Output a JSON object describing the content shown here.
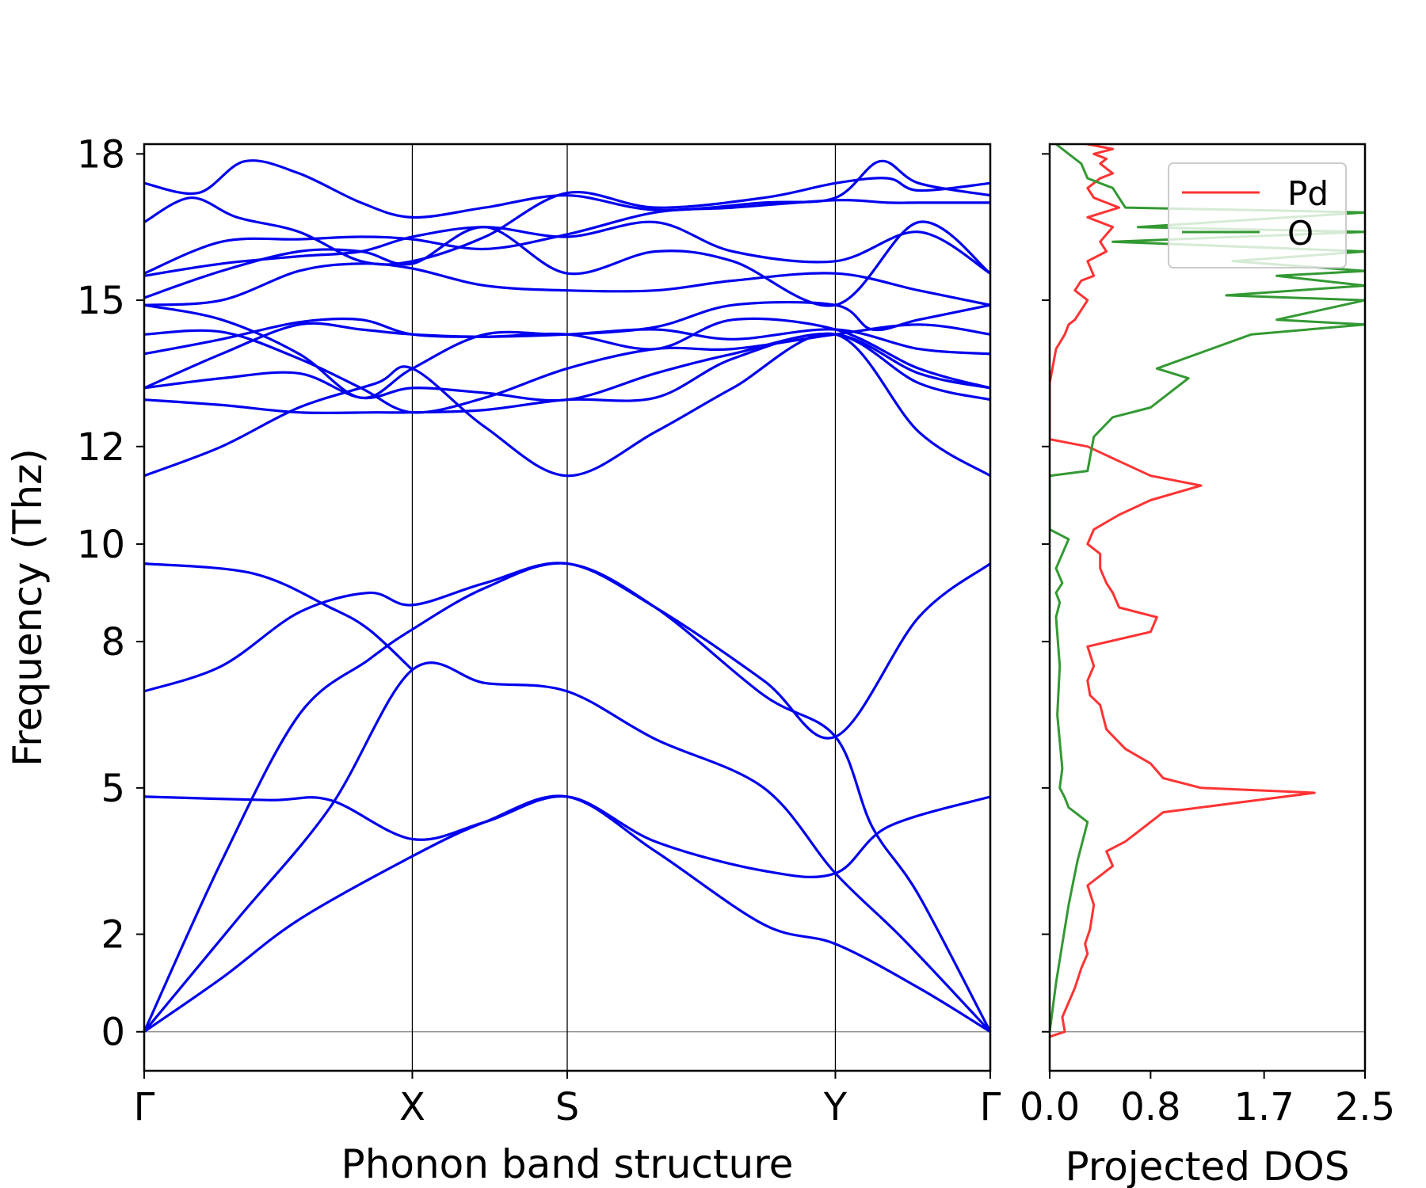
{
  "colors": {
    "bands": "#0000ee",
    "pd": "#ff3333",
    "o": "#339933",
    "axes": "#000000",
    "zero_line": "#808080"
  },
  "chart_data": [
    {
      "type": "line",
      "panel": "phonon-band-structure",
      "xlabel": "Phonon band structure",
      "ylabel": "Frequency (Thz)",
      "ylim": [
        -0.8,
        18.2
      ],
      "yticks": [
        0,
        2,
        5,
        8,
        10,
        12,
        15,
        18
      ],
      "ytick_labels": [
        "0",
        "2",
        "5",
        "8",
        "10",
        "12",
        "15",
        "18"
      ],
      "kpoints": [
        "Γ",
        "X",
        "S",
        "Y",
        "Γ"
      ],
      "kpoint_positions": [
        0,
        1.731,
        2.731,
        4.462,
        5.462
      ],
      "grid": false,
      "series": [
        {
          "x": [
            0,
            0.5,
            1.0,
            1.731,
            2.2,
            2.731,
            3.3,
            4.0,
            4.462,
            5.0,
            5.462
          ],
          "values": [
            0.0,
            1.1,
            2.3,
            3.6,
            4.3,
            4.82,
            3.7,
            2.2,
            1.8,
            0.9,
            0.0
          ]
        },
        {
          "x": [
            0,
            0.6,
            1.2,
            1.731,
            2.2,
            2.731,
            3.3,
            4.0,
            4.462,
            4.9,
            5.462
          ],
          "values": [
            0.0,
            2.3,
            4.6,
            7.42,
            7.15,
            6.98,
            6.0,
            5.0,
            3.25,
            1.9,
            0.0
          ]
        },
        {
          "x": [
            0,
            0.5,
            1.0,
            1.45,
            1.731,
            2.2,
            2.731,
            3.3,
            4.0,
            4.462,
            4.7,
            5.0,
            5.462
          ],
          "values": [
            0.0,
            3.5,
            6.5,
            7.63,
            8.25,
            9.1,
            9.6,
            8.7,
            6.9,
            6.05,
            4.2,
            2.8,
            0.0
          ]
        },
        {
          "x": [
            0,
            0.8,
            1.2,
            1.731,
            2.2,
            2.731,
            3.3,
            4.0,
            4.462,
            4.8,
            5.462
          ],
          "values": [
            4.82,
            4.75,
            4.75,
            3.95,
            4.3,
            4.82,
            3.9,
            3.3,
            3.25,
            4.2,
            4.82
          ]
        },
        {
          "x": [
            0,
            0.5,
            1.0,
            1.45,
            1.731,
            2.2,
            2.731,
            3.3,
            4.0,
            4.462,
            5.0,
            5.462
          ],
          "values": [
            6.98,
            7.5,
            8.6,
            9.0,
            8.75,
            9.2,
            9.6,
            8.7,
            7.2,
            6.05,
            8.5,
            9.6
          ]
        },
        {
          "x": [
            0,
            0.7,
            1.2,
            1.45,
            1.731
          ],
          "values": [
            9.6,
            9.4,
            8.7,
            8.25,
            7.42
          ]
        },
        {
          "x": [
            0,
            0.5,
            1.0,
            1.5,
            1.731,
            2.2,
            2.731,
            3.3,
            3.8,
            4.462,
            5.0,
            5.462
          ],
          "values": [
            11.4,
            12.0,
            12.8,
            13.3,
            13.6,
            12.4,
            11.4,
            12.3,
            13.2,
            14.3,
            12.3,
            11.4
          ]
        },
        {
          "x": [
            0,
            0.5,
            1.0,
            1.5,
            1.731,
            2.2,
            2.731,
            3.3,
            3.8,
            4.462,
            5.0,
            5.462
          ],
          "values": [
            12.96,
            12.85,
            12.7,
            12.7,
            12.7,
            12.75,
            12.96,
            13.0,
            13.8,
            14.3,
            13.3,
            12.96
          ]
        },
        {
          "x": [
            0,
            0.5,
            1.0,
            1.4,
            1.731,
            2.2,
            2.731,
            3.3,
            3.8,
            4.462,
            5.0,
            5.462
          ],
          "values": [
            13.2,
            13.4,
            13.5,
            13.0,
            13.2,
            13.1,
            12.96,
            13.5,
            13.9,
            14.3,
            13.5,
            13.2
          ]
        },
        {
          "x": [
            0,
            0.5,
            1.0,
            1.4,
            1.731,
            2.2,
            2.731,
            3.3,
            3.8,
            4.462,
            5.0,
            5.462
          ],
          "values": [
            13.2,
            13.9,
            14.5,
            14.4,
            14.3,
            14.25,
            14.3,
            14.0,
            14.6,
            14.4,
            13.6,
            13.2
          ]
        },
        {
          "x": [
            0,
            0.5,
            1.0,
            1.4,
            1.731,
            2.2,
            2.731,
            3.3,
            3.8,
            4.462,
            5.0,
            5.462
          ],
          "values": [
            13.9,
            14.2,
            14.55,
            14.6,
            14.3,
            14.25,
            14.3,
            14.4,
            14.2,
            14.4,
            14.0,
            13.9
          ]
        },
        {
          "x": [
            0,
            0.5,
            1.0,
            1.4,
            1.731,
            2.2,
            2.731,
            3.3,
            3.8,
            4.462,
            5.0,
            5.462
          ],
          "values": [
            14.3,
            14.35,
            13.8,
            13.2,
            12.7,
            13.0,
            13.6,
            14.0,
            14.0,
            14.3,
            14.5,
            14.3
          ]
        },
        {
          "x": [
            0,
            0.5,
            1.0,
            1.4,
            1.731,
            2.2,
            2.731,
            3.3,
            3.8,
            4.462,
            4.7,
            5.0,
            5.462
          ],
          "values": [
            14.9,
            14.6,
            13.9,
            13.0,
            13.6,
            14.3,
            14.3,
            14.45,
            14.9,
            14.9,
            14.4,
            14.6,
            14.9
          ]
        },
        {
          "x": [
            0,
            0.5,
            1.0,
            1.4,
            1.731,
            2.2,
            2.731,
            3.3,
            3.8,
            4.462,
            5.0,
            5.462
          ],
          "values": [
            14.9,
            15.0,
            15.6,
            15.75,
            15.65,
            15.3,
            15.2,
            15.2,
            15.4,
            15.55,
            15.2,
            14.9
          ]
        },
        {
          "x": [
            0,
            0.5,
            1.0,
            1.4,
            1.731,
            2.2,
            2.731,
            3.3,
            3.8,
            4.462,
            5.0,
            5.462
          ],
          "values": [
            15.5,
            15.75,
            15.9,
            16.0,
            16.3,
            16.5,
            16.3,
            16.6,
            16.0,
            15.8,
            16.4,
            15.55
          ]
        },
        {
          "x": [
            0,
            0.5,
            1.0,
            1.4,
            1.731,
            2.2,
            2.731,
            3.3,
            3.8,
            4.462,
            5.0,
            5.462
          ],
          "values": [
            15.05,
            15.6,
            16.0,
            16.0,
            15.75,
            16.5,
            15.55,
            16.0,
            15.8,
            14.9,
            16.6,
            15.55
          ]
        },
        {
          "x": [
            0,
            0.5,
            1.0,
            1.4,
            1.731,
            2.2,
            2.731,
            3.3,
            3.8,
            4.462,
            4.8,
            5.0,
            5.462
          ],
          "values": [
            15.55,
            16.2,
            16.25,
            16.3,
            16.25,
            16.05,
            16.35,
            16.8,
            16.9,
            17.05,
            17.0,
            17.0,
            17.0
          ]
        },
        {
          "x": [
            0,
            0.3,
            0.6,
            1.0,
            1.4,
            1.731,
            2.2,
            2.731,
            3.3,
            4.0,
            4.462,
            4.8,
            5.0,
            5.462
          ],
          "values": [
            16.6,
            17.1,
            16.7,
            16.4,
            15.8,
            15.8,
            16.3,
            17.2,
            16.9,
            17.1,
            17.4,
            17.5,
            17.25,
            17.4
          ]
        },
        {
          "x": [
            0,
            0.35,
            0.65,
            1.0,
            1.4,
            1.731,
            2.2,
            2.731,
            3.3,
            4.0,
            4.462,
            4.75,
            5.0,
            5.462
          ],
          "values": [
            17.4,
            17.2,
            17.85,
            17.6,
            17.0,
            16.7,
            16.9,
            17.15,
            16.85,
            17.0,
            17.1,
            17.85,
            17.4,
            17.15
          ]
        }
      ]
    },
    {
      "type": "line",
      "panel": "projected-dos",
      "xlabel": "Projected DOS",
      "xlim": [
        0.0,
        2.5
      ],
      "xticks": [
        0.0,
        0.8,
        1.7,
        2.5
      ],
      "xtick_labels": [
        "0.0",
        "0.8",
        "1.7",
        "2.5"
      ],
      "ylim": [
        -0.8,
        18.2
      ],
      "legend": "top-right",
      "grid": false,
      "series": [
        {
          "name": "Pd",
          "x": [
            0.0,
            0.12,
            0.1,
            0.2,
            0.25,
            0.3,
            0.28,
            0.32,
            0.35,
            0.3,
            0.5,
            0.45,
            0.6,
            0.7,
            0.9,
            1.5,
            2.1,
            1.2,
            0.9,
            0.8,
            0.6,
            0.45,
            0.4,
            0.32,
            0.3,
            0.35,
            0.3,
            0.8,
            0.85,
            0.55,
            0.5,
            0.45,
            0.4,
            0.4,
            0.3,
            0.35,
            0.55,
            0.8,
            1.2,
            0.8,
            0.55,
            0.3,
            0.0,
            0.0,
            0.05,
            0.12,
            0.15,
            0.2,
            0.25,
            0.3,
            0.2,
            0.25,
            0.35,
            0.3,
            0.45,
            0.4,
            0.5,
            0.3,
            0.55,
            0.35,
            0.3,
            0.4,
            0.5,
            0.4,
            0.45,
            0.35,
            0.5,
            0.3,
            0.2,
            0.1,
            0.0
          ],
          "values": [
            -0.1,
            0.0,
            0.3,
            0.9,
            1.3,
            1.6,
            1.8,
            2.1,
            2.6,
            3.0,
            3.4,
            3.7,
            3.9,
            4.1,
            4.5,
            4.7,
            4.9,
            5.0,
            5.2,
            5.5,
            5.8,
            6.2,
            6.7,
            6.9,
            7.2,
            7.5,
            7.9,
            8.2,
            8.5,
            8.7,
            9.0,
            9.2,
            9.5,
            9.8,
            10.0,
            10.3,
            10.6,
            10.9,
            11.2,
            11.4,
            11.7,
            12.0,
            12.15,
            13.3,
            14.0,
            14.3,
            14.5,
            14.6,
            14.8,
            15.0,
            15.2,
            15.4,
            15.5,
            15.8,
            16.0,
            16.2,
            16.5,
            16.7,
            16.9,
            17.1,
            17.3,
            17.5,
            17.6,
            17.8,
            17.9,
            18.0,
            18.1,
            18.2,
            18.25,
            18.3,
            18.35
          ]
        },
        {
          "name": "O",
          "x": [
            0.0,
            0.02,
            0.05,
            0.1,
            0.15,
            0.22,
            0.3,
            0.2,
            0.15,
            0.12,
            0.08,
            0.1,
            0.06,
            0.08,
            0.05,
            0.08,
            0.05,
            0.1,
            0.05,
            0.1,
            0.15,
            0.0,
            0.0,
            0.3,
            0.35,
            0.5,
            0.8,
            1.1,
            0.85,
            1.6,
            2.5,
            1.8,
            2.5,
            1.4,
            2.5,
            1.8,
            2.5,
            1.45,
            2.5,
            0.5,
            2.5,
            0.7,
            2.5,
            0.6,
            0.5,
            0.3,
            0.25,
            0.15,
            0.05
          ],
          "values": [
            0.0,
            0.4,
            1.0,
            1.8,
            2.6,
            3.5,
            4.3,
            4.5,
            4.6,
            4.8,
            5.0,
            5.4,
            6.5,
            7.5,
            8.5,
            8.8,
            9.0,
            9.2,
            9.5,
            9.8,
            10.1,
            10.3,
            11.4,
            11.5,
            12.2,
            12.6,
            12.8,
            13.4,
            13.6,
            14.3,
            14.5,
            14.6,
            15.0,
            15.1,
            15.3,
            15.5,
            15.6,
            15.8,
            16.0,
            16.2,
            16.4,
            16.5,
            16.8,
            16.9,
            17.3,
            17.5,
            17.8,
            18.0,
            18.2
          ]
        }
      ]
    }
  ]
}
